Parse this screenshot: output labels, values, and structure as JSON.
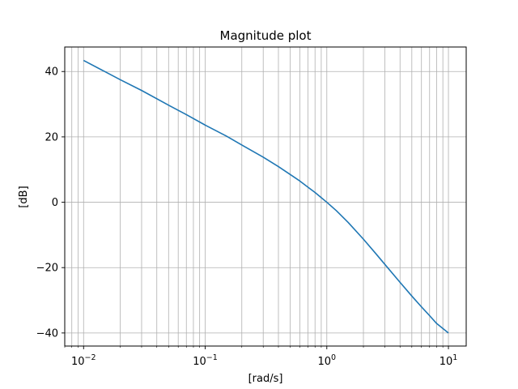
{
  "chart_data": {
    "type": "line",
    "title": "Magnitude plot",
    "xlabel": "[rad/s]",
    "ylabel": "[dB]",
    "xscale": "log",
    "xlim": [
      0.007,
      14
    ],
    "ylim": [
      -44,
      47.5
    ],
    "grid": true,
    "grid_minor_x": true,
    "x_tick_labels": [
      {
        "value": 0.01,
        "base": "10",
        "exp": "−2"
      },
      {
        "value": 0.1,
        "base": "10",
        "exp": "−1"
      },
      {
        "value": 1,
        "base": "10",
        "exp": "0"
      },
      {
        "value": 10,
        "base": "10",
        "exp": "1"
      }
    ],
    "y_ticks": [
      40,
      20,
      0,
      -20,
      -40
    ],
    "y_tick_labels": [
      "40",
      "20",
      "0",
      "−20",
      "−40"
    ],
    "series": [
      {
        "color": "#1f77b4",
        "x": [
          0.01,
          0.02,
          0.03,
          0.05,
          0.07,
          0.1,
          0.15,
          0.2,
          0.3,
          0.4,
          0.5,
          0.6,
          0.7,
          0.8,
          0.9,
          1.0,
          1.2,
          1.5,
          2.0,
          2.5,
          3.0,
          4.0,
          5.0,
          6.0,
          7.0,
          8.0,
          10.0
        ],
        "y": [
          43.4,
          37.5,
          34.2,
          29.7,
          26.8,
          23.6,
          20.2,
          17.5,
          13.8,
          10.9,
          8.5,
          6.5,
          4.6,
          3.0,
          1.4,
          0.0,
          -2.6,
          -6.2,
          -11.3,
          -15.5,
          -19.0,
          -24.5,
          -28.7,
          -32.0,
          -34.7,
          -37.1,
          -40.0
        ]
      }
    ]
  }
}
